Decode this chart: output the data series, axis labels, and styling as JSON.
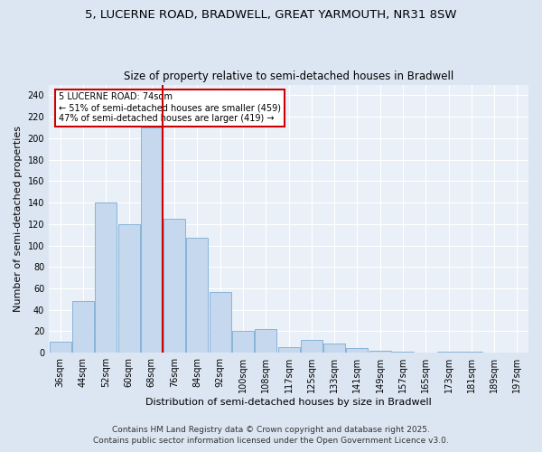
{
  "title1": "5, LUCERNE ROAD, BRADWELL, GREAT YARMOUTH, NR31 8SW",
  "title2": "Size of property relative to semi-detached houses in Bradwell",
  "xlabel": "Distribution of semi-detached houses by size in Bradwell",
  "ylabel": "Number of semi-detached properties",
  "categories": [
    "36sqm",
    "44sqm",
    "52sqm",
    "60sqm",
    "68sqm",
    "76sqm",
    "84sqm",
    "92sqm",
    "100sqm",
    "108sqm",
    "117sqm",
    "125sqm",
    "133sqm",
    "141sqm",
    "149sqm",
    "157sqm",
    "165sqm",
    "173sqm",
    "181sqm",
    "189sqm",
    "197sqm"
  ],
  "values": [
    10,
    48,
    140,
    120,
    210,
    125,
    107,
    57,
    20,
    22,
    5,
    12,
    9,
    4,
    2,
    1,
    0,
    1,
    1,
    0,
    0
  ],
  "bar_color": "#c5d8ee",
  "bar_edge_color": "#7aadd4",
  "vline_pos": 4.5,
  "vline_color": "#cc0000",
  "annotation_line1": "5 LUCERNE ROAD: 74sqm",
  "annotation_line2": "← 51% of semi-detached houses are smaller (459)",
  "annotation_line3": "47% of semi-detached houses are larger (419) →",
  "annotation_box_color": "#ffffff",
  "annotation_box_edge": "#cc0000",
  "ylim": [
    0,
    250
  ],
  "yticks": [
    0,
    20,
    40,
    60,
    80,
    100,
    120,
    140,
    160,
    180,
    200,
    220,
    240
  ],
  "footer1": "Contains HM Land Registry data © Crown copyright and database right 2025.",
  "footer2": "Contains public sector information licensed under the Open Government Licence v3.0.",
  "bg_color": "#dce6f2",
  "plot_bg_color": "#eaf0f8",
  "title_fontsize": 9.5,
  "subtitle_fontsize": 8.5,
  "ylabel_fontsize": 8,
  "xlabel_fontsize": 8,
  "tick_fontsize": 7,
  "annot_fontsize": 7,
  "footer_fontsize": 6.5
}
